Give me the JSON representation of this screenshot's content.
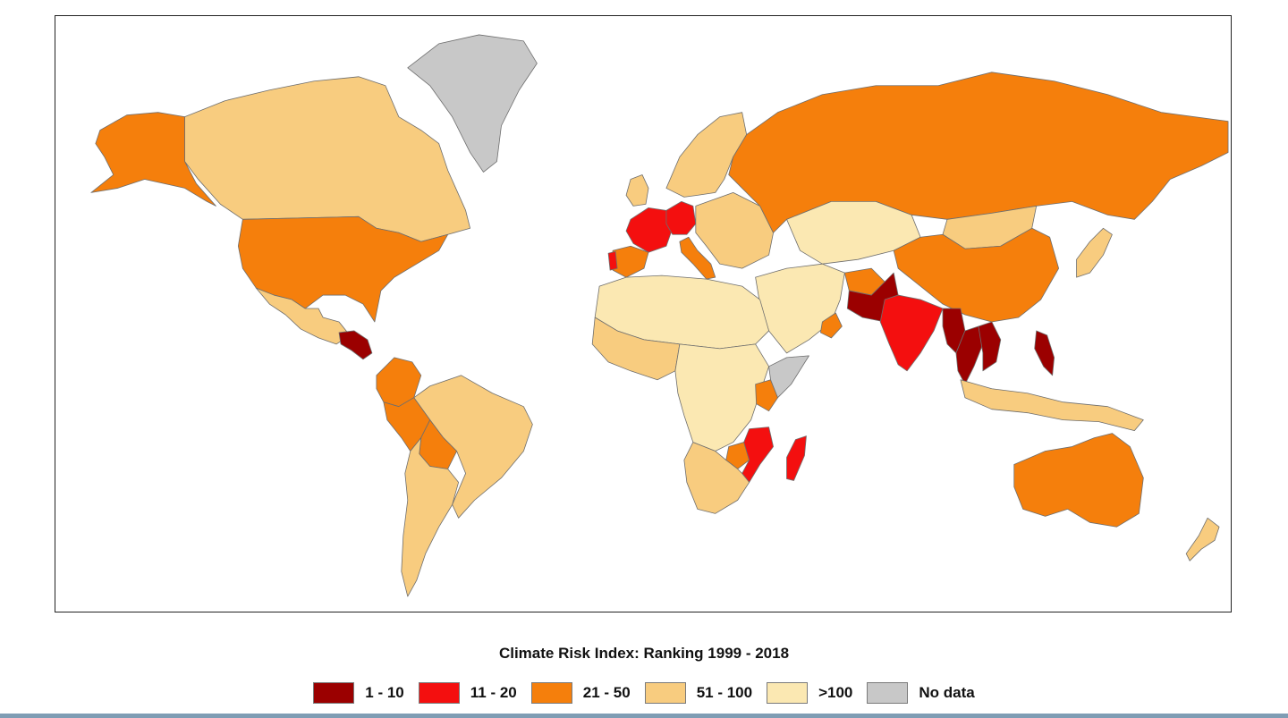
{
  "map": {
    "subject": "Climate Risk Index world choropleth",
    "classes": [
      {
        "label": "1 - 10",
        "color": "#9b0000",
        "key": "c1"
      },
      {
        "label": "11 - 20",
        "color": "#f40f0f",
        "key": "c2"
      },
      {
        "label": "21 - 50",
        "color": "#f57f0c",
        "key": "c3"
      },
      {
        "label": "51 - 100",
        "color": "#f8cc7f",
        "key": "c4"
      },
      {
        "label": ">100",
        "color": "#fbe8b2",
        "key": "c5"
      },
      {
        "label": "No data",
        "color": "#c8c8c8",
        "key": "c6"
      }
    ],
    "regions": [
      {
        "name": "Greenland",
        "cls": "c6"
      },
      {
        "name": "Canada",
        "cls": "c4"
      },
      {
        "name": "Alaska",
        "cls": "c3"
      },
      {
        "name": "United States",
        "cls": "c3"
      },
      {
        "name": "Mexico",
        "cls": "c4"
      },
      {
        "name": "Central America",
        "cls": "c1"
      },
      {
        "name": "Colombia",
        "cls": "c3"
      },
      {
        "name": "Peru",
        "cls": "c3"
      },
      {
        "name": "Bolivia",
        "cls": "c3"
      },
      {
        "name": "Brazil",
        "cls": "c4"
      },
      {
        "name": "Argentina",
        "cls": "c4"
      },
      {
        "name": "Scandinavia",
        "cls": "c4"
      },
      {
        "name": "United Kingdom",
        "cls": "c4"
      },
      {
        "name": "France",
        "cls": "c2"
      },
      {
        "name": "Germany",
        "cls": "c2"
      },
      {
        "name": "Italy",
        "cls": "c3"
      },
      {
        "name": "Iberia",
        "cls": "c3"
      },
      {
        "name": "Portugal",
        "cls": "c2"
      },
      {
        "name": "Eastern Europe",
        "cls": "c4"
      },
      {
        "name": "Russia",
        "cls": "c3"
      },
      {
        "name": "Kazakhstan",
        "cls": "c5"
      },
      {
        "name": "Mongolia",
        "cls": "c4"
      },
      {
        "name": "China",
        "cls": "c3"
      },
      {
        "name": "Japan",
        "cls": "c4"
      },
      {
        "name": "Middle East",
        "cls": "c5"
      },
      {
        "name": "Oman",
        "cls": "c3"
      },
      {
        "name": "Afghanistan",
        "cls": "c3"
      },
      {
        "name": "Pakistan",
        "cls": "c1"
      },
      {
        "name": "India",
        "cls": "c2"
      },
      {
        "name": "Myanmar",
        "cls": "c1"
      },
      {
        "name": "Thailand",
        "cls": "c1"
      },
      {
        "name": "Vietnam",
        "cls": "c1"
      },
      {
        "name": "Philippines",
        "cls": "c1"
      },
      {
        "name": "Indonesia",
        "cls": "c4"
      },
      {
        "name": "Australia",
        "cls": "c3"
      },
      {
        "name": "New Zealand",
        "cls": "c4"
      },
      {
        "name": "North Africa",
        "cls": "c5"
      },
      {
        "name": "West Africa",
        "cls": "c4"
      },
      {
        "name": "Central Africa",
        "cls": "c5"
      },
      {
        "name": "Kenya",
        "cls": "c3"
      },
      {
        "name": "Somalia",
        "cls": "c6"
      },
      {
        "name": "Mozambique",
        "cls": "c2"
      },
      {
        "name": "Zimbabwe",
        "cls": "c3"
      },
      {
        "name": "Madagascar",
        "cls": "c2"
      },
      {
        "name": "Southern Africa",
        "cls": "c4"
      }
    ]
  },
  "legend": {
    "title": "Climate Risk Index: Ranking 1999 - 2018",
    "items": [
      {
        "label": "1 - 10",
        "color": "#9b0000"
      },
      {
        "label": "11 - 20",
        "color": "#f40f0f"
      },
      {
        "label": "21 - 50",
        "color": "#f57f0c"
      },
      {
        "label": "51 - 100",
        "color": "#f8cc7f"
      },
      {
        "label": ">100",
        "color": "#fbe8b2"
      },
      {
        "label": "No data",
        "color": "#c8c8c8"
      }
    ]
  },
  "colors": {
    "frame": "#222222",
    "border": "#6e6e6e",
    "bottom_rule": "#7f9db4"
  }
}
